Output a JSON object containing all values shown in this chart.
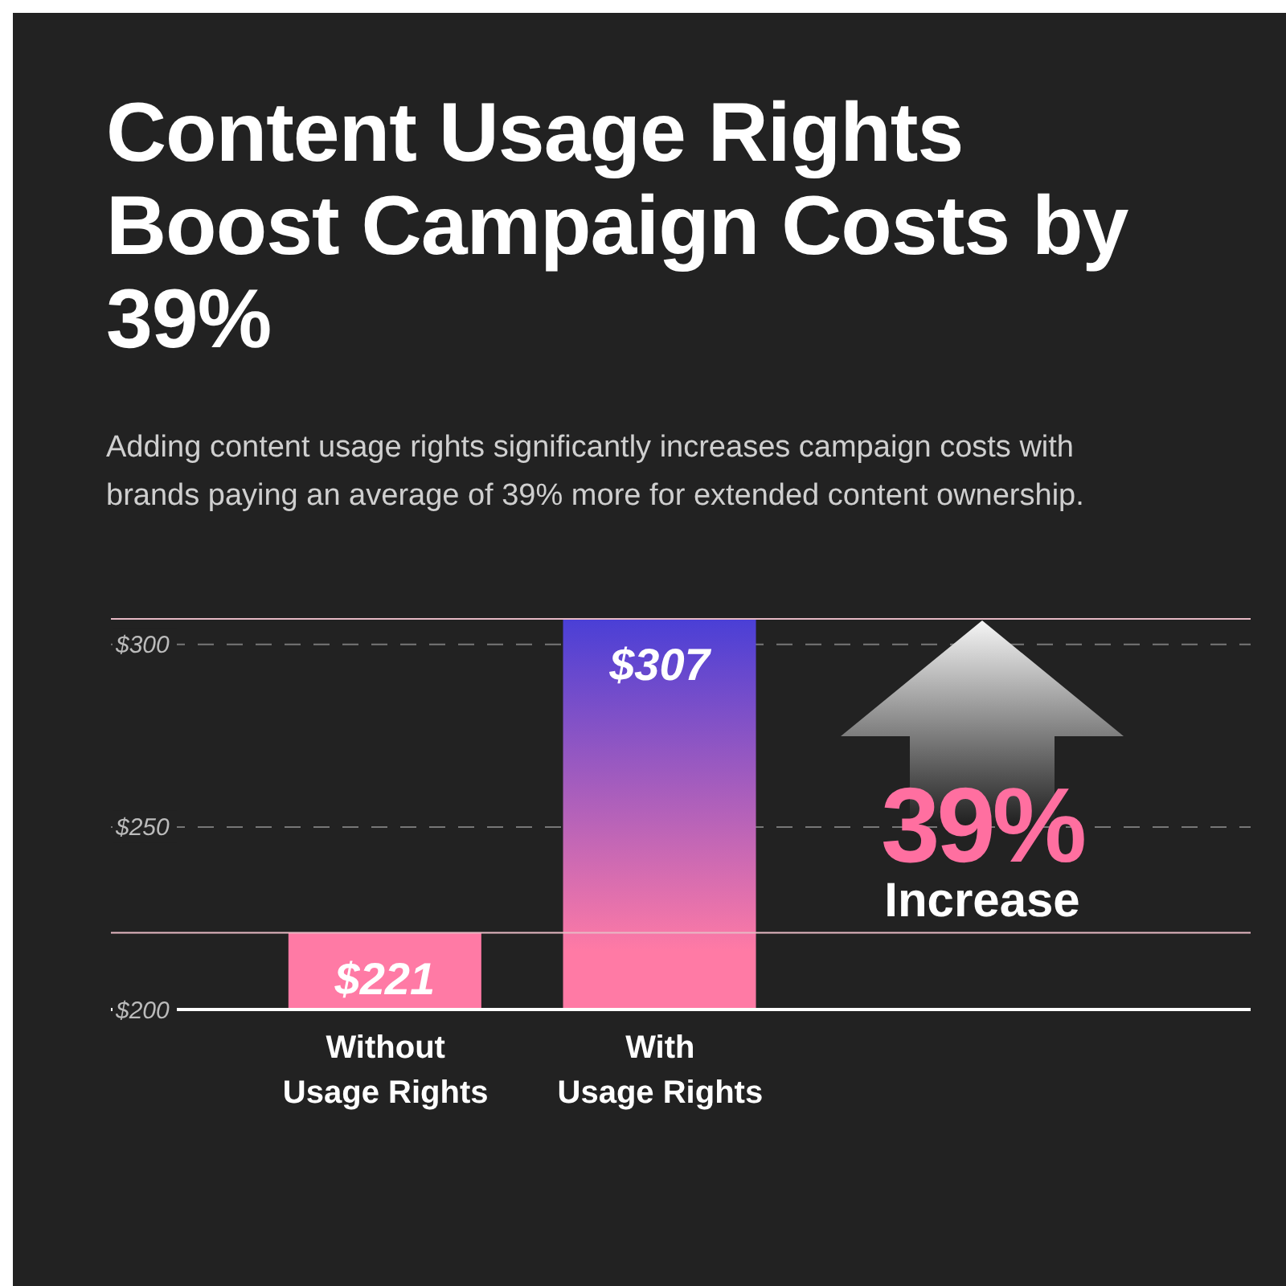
{
  "chart_data": {
    "type": "bar",
    "title": "Content Usage Rights Boost Campaign Costs by 39%",
    "subtitle": "Adding content usage rights significantly increases campaign costs with brands paying an average of 39% more for extended content ownership.",
    "categories": [
      "Without Usage Rights",
      "With Usage Rights"
    ],
    "values": [
      221,
      307
    ],
    "value_labels": [
      "$221",
      "$307"
    ],
    "colors": [
      "#ff7aa5",
      "#4a3fd6"
    ],
    "ylim": [
      200,
      307
    ],
    "yticks": [
      {
        "value": 200,
        "label": "$200"
      },
      {
        "value": 250,
        "label": "$250"
      },
      {
        "value": 300,
        "label": "$300"
      }
    ],
    "grid": "y",
    "ref_lines": [
      {
        "axis": "y",
        "value": 307,
        "color": "#e7b9c4"
      },
      {
        "axis": "y",
        "value": 221,
        "color": "#e7b9c4"
      }
    ],
    "annotations": [
      "39%",
      "Increase"
    ]
  }
}
